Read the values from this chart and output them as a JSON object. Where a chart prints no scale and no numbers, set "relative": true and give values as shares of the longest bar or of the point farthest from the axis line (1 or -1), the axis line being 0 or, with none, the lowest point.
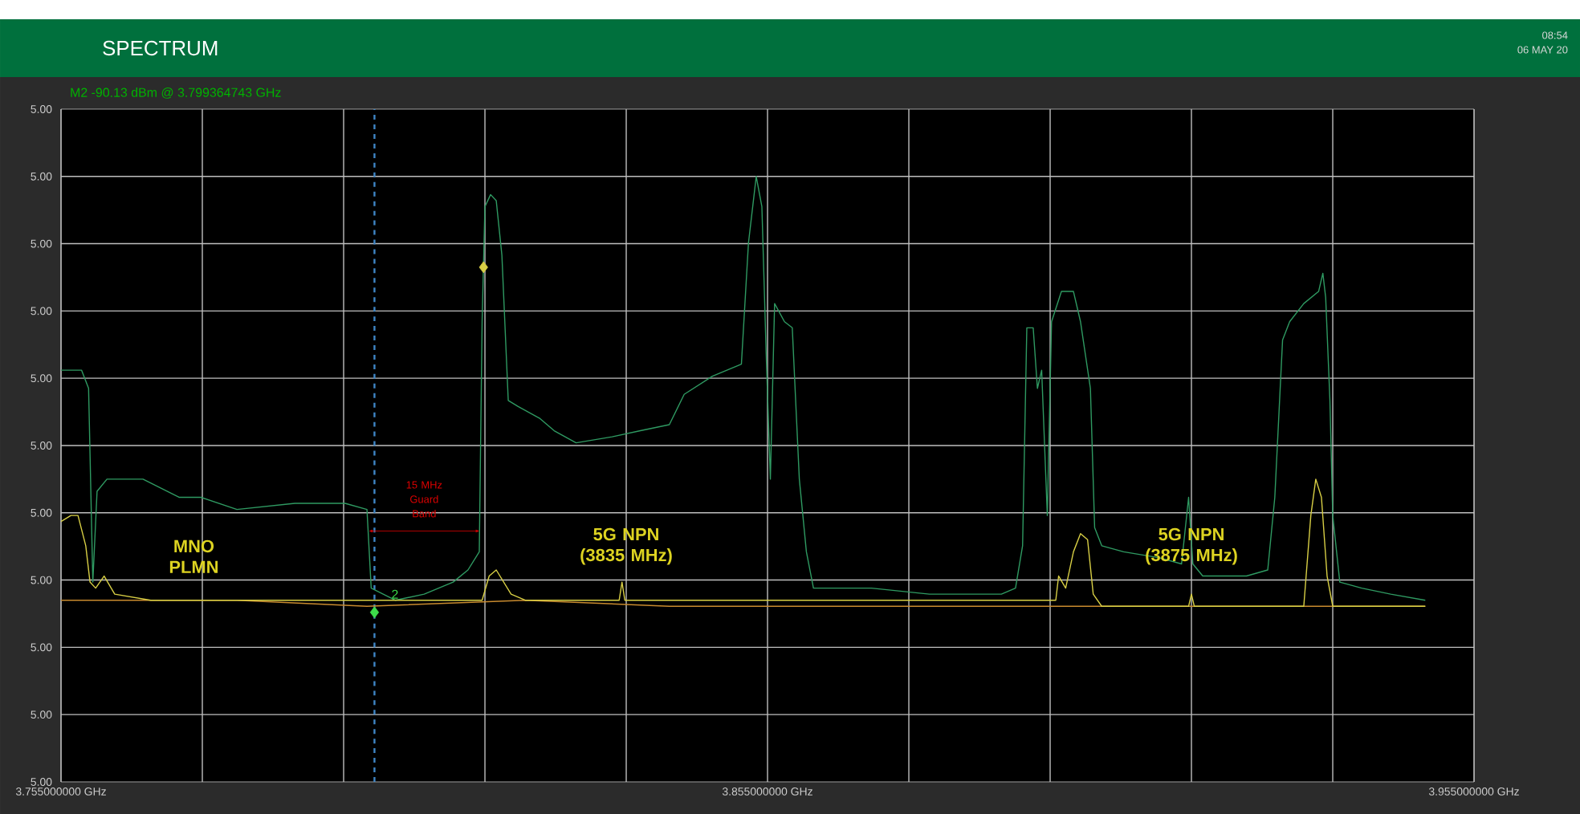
{
  "chart_data": {
    "type": "line",
    "title": "SPECTRUM",
    "relative": true,
    "annotations": [
      "M2 -90.13 dBm @ 3.799364743 GHz",
      "08:54",
      "06 MAY 20",
      "MNO PLMN",
      "15 MHz Guard Band",
      "5G NPN (3835 MHz)",
      "5G NPN (3875 MHz)",
      "5.00",
      "5.00",
      "5.00",
      "5.00",
      "5.00",
      "5.00",
      "5.00",
      "5.00",
      "5.00",
      "5.00",
      "5.00"
    ],
    "xlim": [
      3.755,
      3.955
    ],
    "xticks": [
      {
        "value": 3.755,
        "label": "3.755000000 GHz"
      },
      {
        "value": 3.775,
        "label": null
      },
      {
        "value": 3.795,
        "label": null
      },
      {
        "value": 3.815,
        "label": null
      },
      {
        "value": 3.835,
        "label": null
      },
      {
        "value": 3.855,
        "label": "3.855000000 GHz"
      },
      {
        "value": 3.875,
        "label": null
      },
      {
        "value": 3.895,
        "label": null
      },
      {
        "value": 3.915,
        "label": null
      },
      {
        "value": 3.935,
        "label": null
      },
      {
        "value": 3.955,
        "label": "3.955000000 GHz"
      }
    ],
    "tick_labels": "x",
    "grid": true,
    "ref_lines": [
      {
        "axis": "x",
        "value": 3.799364743,
        "color": "#3f86c6",
        "line_style": "dashed"
      }
    ],
    "series": [
      {
        "color": "#2f9a62",
        "x": [
          3.755,
          3.757,
          3.7579,
          3.7589,
          3.7595,
          3.7601,
          3.7615,
          3.7666,
          3.7717,
          3.7748,
          3.7799,
          3.7881,
          3.7952,
          3.7983,
          3.7989,
          3.8023,
          3.8064,
          3.8105,
          3.8126,
          3.8142,
          3.8146,
          3.815,
          3.8158,
          3.8166,
          3.8174,
          3.8183,
          3.8197,
          3.8228,
          3.8248,
          3.8279,
          3.833,
          3.837,
          3.8411,
          3.8432,
          3.8472,
          3.8513,
          3.8523,
          3.8534,
          3.8542,
          3.8548,
          3.8554,
          3.856,
          3.8574,
          3.8585,
          3.8595,
          3.8605,
          3.8615,
          3.8697,
          3.8779,
          3.8881,
          3.8901,
          3.8911,
          3.8917,
          3.8926,
          3.8932,
          3.8938,
          3.8946,
          3.8952,
          3.8966,
          3.8983,
          3.8993,
          3.9007,
          3.9013,
          3.9023,
          3.9054,
          3.9105,
          3.9136,
          3.9146,
          3.9152,
          3.9166,
          3.9228,
          3.9258,
          3.9268,
          3.9279,
          3.9289,
          3.9309,
          3.933,
          3.9336,
          3.934,
          3.9346,
          3.935,
          3.936,
          3.9391,
          3.9432,
          3.9481
        ],
        "values": [
          0.68,
          0.68,
          0.68,
          0.65,
          0.33,
          0.48,
          0.5,
          0.5,
          0.47,
          0.47,
          0.45,
          0.46,
          0.46,
          0.45,
          0.32,
          0.3,
          0.31,
          0.33,
          0.35,
          0.38,
          0.76,
          0.95,
          0.97,
          0.96,
          0.87,
          0.63,
          0.62,
          0.6,
          0.58,
          0.56,
          0.57,
          0.58,
          0.59,
          0.64,
          0.67,
          0.69,
          0.89,
          1.0,
          0.95,
          0.71,
          0.5,
          0.79,
          0.76,
          0.75,
          0.5,
          0.38,
          0.32,
          0.32,
          0.31,
          0.31,
          0.32,
          0.39,
          0.75,
          0.75,
          0.65,
          0.68,
          0.44,
          0.76,
          0.81,
          0.81,
          0.76,
          0.65,
          0.42,
          0.39,
          0.38,
          0.37,
          0.36,
          0.47,
          0.36,
          0.34,
          0.34,
          0.35,
          0.47,
          0.73,
          0.76,
          0.79,
          0.81,
          0.84,
          0.8,
          0.63,
          0.44,
          0.33,
          0.32,
          0.31,
          0.3
        ]
      },
      {
        "color": "#c88a2e",
        "x": [
          3.755,
          3.7677,
          3.7799,
          3.7983,
          3.8207,
          3.8411,
          3.8615,
          3.8881,
          3.9105,
          3.9309,
          3.9481
        ],
        "values": [
          0.3,
          0.3,
          0.3,
          0.29,
          0.3,
          0.29,
          0.29,
          0.29,
          0.29,
          0.29,
          0.29
        ]
      },
      {
        "color": "#d8cf45",
        "x": [
          3.755,
          3.7564,
          3.7574,
          3.7585,
          3.7591,
          3.7599,
          3.7611,
          3.7626,
          3.7677,
          3.7881,
          3.8146,
          3.8156,
          3.8166,
          3.8187,
          3.8207,
          3.834,
          3.8344,
          3.8348,
          3.886,
          3.8958,
          3.8962,
          3.8972,
          3.8983,
          3.8993,
          3.9003,
          3.9011,
          3.9023,
          3.9146,
          3.915,
          3.9154,
          3.9309,
          3.9319,
          3.9326,
          3.9334,
          3.9342,
          3.935,
          3.9481
        ],
        "values": [
          0.43,
          0.44,
          0.44,
          0.39,
          0.33,
          0.32,
          0.34,
          0.31,
          0.3,
          0.3,
          0.3,
          0.34,
          0.35,
          0.31,
          0.3,
          0.3,
          0.33,
          0.3,
          0.3,
          0.3,
          0.34,
          0.32,
          0.38,
          0.41,
          0.4,
          0.31,
          0.29,
          0.29,
          0.31,
          0.29,
          0.29,
          0.44,
          0.5,
          0.47,
          0.34,
          0.29,
          0.29
        ]
      },
      {
        "type": "scatter",
        "name": "2",
        "marker": "diamond",
        "color": "#3ddc4a",
        "x": [
          3.799364743
        ],
        "values": [
          0.28
        ]
      },
      {
        "type": "scatter",
        "marker": "diamond",
        "color": "#d8cf45",
        "x": [
          3.8148
        ],
        "values": [
          0.85
        ]
      }
    ]
  }
}
